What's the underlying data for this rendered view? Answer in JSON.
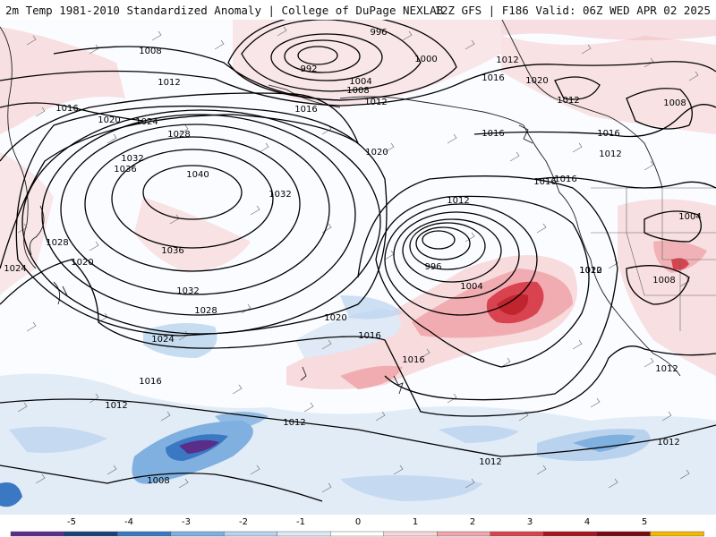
{
  "header": {
    "left_text": "2m Temp 1981-2010 Standardized Anomaly | College of DuPage NEXLAB",
    "right_text": "12Z GFS | F186 Valid: 06Z WED APR 02 2025"
  },
  "isobars": [
    {
      "text": "996"
    },
    {
      "text": "992"
    },
    {
      "text": "1000"
    },
    {
      "text": "1004"
    },
    {
      "text": "1008"
    },
    {
      "text": "1012"
    },
    {
      "text": "1008"
    },
    {
      "text": "1012"
    },
    {
      "text": "1016"
    },
    {
      "text": "1020"
    },
    {
      "text": "1024"
    },
    {
      "text": "1028"
    },
    {
      "text": "1032"
    },
    {
      "text": "1036"
    },
    {
      "text": "1040"
    },
    {
      "text": "1032"
    },
    {
      "text": "1036"
    },
    {
      "text": "1032"
    },
    {
      "text": "1028"
    },
    {
      "text": "1024"
    },
    {
      "text": "1028"
    },
    {
      "text": "1024"
    },
    {
      "text": "1020"
    },
    {
      "text": "1016"
    },
    {
      "text": "1012"
    },
    {
      "text": "1020"
    },
    {
      "text": "1016"
    },
    {
      "text": "1016"
    },
    {
      "text": "1012"
    },
    {
      "text": "1016"
    },
    {
      "text": "1012"
    },
    {
      "text": "1008"
    },
    {
      "text": "1016"
    },
    {
      "text": "1020"
    },
    {
      "text": "1020"
    },
    {
      "text": "1016"
    },
    {
      "text": "1012"
    },
    {
      "text": "996"
    },
    {
      "text": "1004"
    },
    {
      "text": "1016"
    },
    {
      "text": "1012"
    },
    {
      "text": "1012"
    },
    {
      "text": "1008"
    },
    {
      "text": "1004"
    },
    {
      "text": "1008"
    },
    {
      "text": "1012"
    },
    {
      "text": "1012"
    },
    {
      "text": "1012"
    },
    {
      "text": "1012"
    },
    {
      "text": "1016"
    },
    {
      "text": "1020"
    },
    {
      "text": "1016"
    }
  ],
  "legend": {
    "ticks": [
      "-5",
      "-4",
      "-3",
      "-2",
      "-1",
      "0",
      "1",
      "2",
      "3",
      "4",
      "5"
    ],
    "colors": [
      "#5a2d8a",
      "#1d3f7a",
      "#3b78c4",
      "#7fb0e0",
      "#b9d3ee",
      "#dfeaf6",
      "#ffffff",
      "#f7d7d9",
      "#efa6ad",
      "#d9434f",
      "#a8141f",
      "#7a0a10",
      "#f5b800"
    ]
  }
}
